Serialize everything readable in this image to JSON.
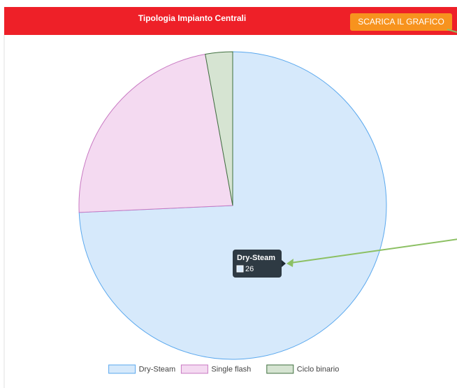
{
  "button": "SCARICA IL GRAFICO",
  "chart_data": {
    "type": "pie",
    "title": "Tipologia Impianto Centrali",
    "categories": [
      "Dry-Steam",
      "Single flash",
      "Ciclo binario"
    ],
    "values": [
      26,
      8,
      1
    ],
    "colors": [
      "#d6e9fb",
      "#f4daf1",
      "#d6e4d2"
    ],
    "border_colors": [
      "#5aa8ee",
      "#c878c2",
      "#3f6f3f"
    ],
    "legend": "bottom"
  }
}
